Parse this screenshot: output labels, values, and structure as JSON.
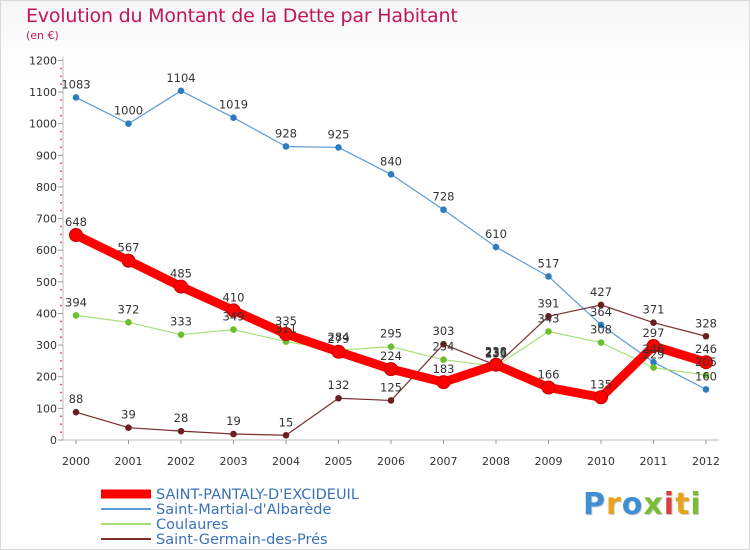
{
  "title": "Evolution du Montant de la Dette par Habitant",
  "subtitle": "(en €)",
  "logo_text": "Proxiti",
  "chart_data": {
    "type": "line",
    "title": "Evolution du Montant de la Dette par Habitant",
    "subtitle": "(en €)",
    "xlabel": "",
    "ylabel": "",
    "x": [
      "2000",
      "2001",
      "2002",
      "2003",
      "2004",
      "2005",
      "2006",
      "2007",
      "2008",
      "2009",
      "2010",
      "2011",
      "2012"
    ],
    "ylim": [
      0,
      1200
    ],
    "yticks": [
      0,
      100,
      200,
      300,
      400,
      500,
      600,
      700,
      800,
      900,
      1000,
      1100,
      1200
    ],
    "grid": false,
    "legend_position": "bottom-left",
    "series": [
      {
        "name": "SAINT-PANTALY-D'EXCIDEUIL",
        "color": "#ff0000",
        "marker": "#e60000",
        "bold": true,
        "values": [
          648,
          567,
          485,
          410,
          335,
          279,
          224,
          183,
          238,
          166,
          135,
          297,
          246
        ],
        "labels": [
          "648",
          "567",
          "485",
          "410",
          "335",
          "279",
          "224",
          "183",
          "238",
          "166",
          "135",
          "297",
          "246"
        ]
      },
      {
        "name": "Saint-Martial-d'Albarède",
        "color": "#5b9bd5",
        "marker": "#2f7bbf",
        "bold": false,
        "values": [
          1083,
          1000,
          1104,
          1019,
          928,
          925,
          840,
          728,
          610,
          517,
          364,
          246,
          160
        ],
        "labels": [
          "1083",
          "1000",
          "1104",
          "1019",
          "928",
          "925",
          "840",
          "728",
          "610",
          "517",
          "364",
          "246",
          "160"
        ]
      },
      {
        "name": "Coulaures",
        "color": "#a6e07a",
        "marker": "#6cbf2c",
        "bold": false,
        "values": [
          394,
          372,
          333,
          349,
          311,
          284,
          295,
          254,
          233,
          343,
          308,
          229,
          205
        ],
        "labels": [
          "394",
          "372",
          "333",
          "349",
          "311",
          "284",
          "295",
          "254",
          "233",
          "343",
          "308",
          "229",
          "205"
        ]
      },
      {
        "name": "Saint-Germain-des-Prés",
        "color": "#7a2e2e",
        "marker": "#6b1f1f",
        "bold": false,
        "values": [
          88,
          39,
          28,
          19,
          15,
          132,
          125,
          303,
          236,
          391,
          427,
          371,
          328
        ],
        "labels": [
          "88",
          "39",
          "28",
          "19",
          "15",
          "132",
          "125",
          "303",
          "236",
          "391",
          "427",
          "371",
          "328"
        ]
      }
    ]
  }
}
